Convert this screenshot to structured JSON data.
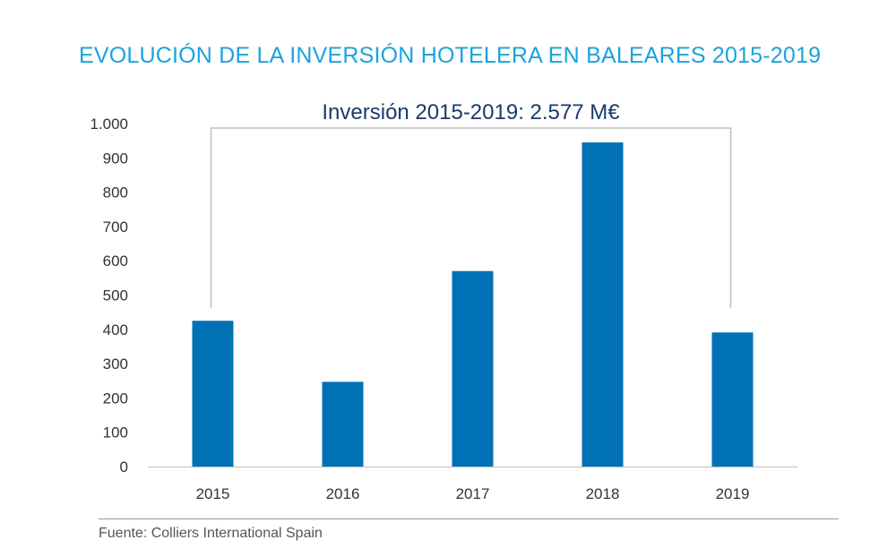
{
  "colors": {
    "title": "#1aa3dd",
    "bar": "#0071b5",
    "annotation": "#1a3a6b",
    "axis_text": "#333333",
    "bracket": "#bfbfbf",
    "axis_line": "#bfbfbf"
  },
  "footer": {
    "source": "Fuente: Colliers International Spain"
  },
  "chart_data": {
    "type": "bar",
    "title": "EVOLUCIÓN DE LA INVERSIÓN HOTELERA EN BALEARES 2015-2019",
    "xlabel": "",
    "ylabel": "",
    "categories": [
      "2015",
      "2016",
      "2017",
      "2018",
      "2019"
    ],
    "values": [
      425,
      247,
      570,
      945,
      391
    ],
    "ylim": [
      0,
      1000
    ],
    "yticks": [
      0,
      100,
      200,
      300,
      400,
      500,
      600,
      700,
      800,
      900,
      1000
    ],
    "ytick_labels": [
      "0",
      "100",
      "200",
      "300",
      "400",
      "500",
      "600",
      "700",
      "800",
      "900",
      "1.000"
    ],
    "grid": false,
    "legend": "none",
    "annotation": "Inversión 2015-2019: 2.577 M€"
  }
}
